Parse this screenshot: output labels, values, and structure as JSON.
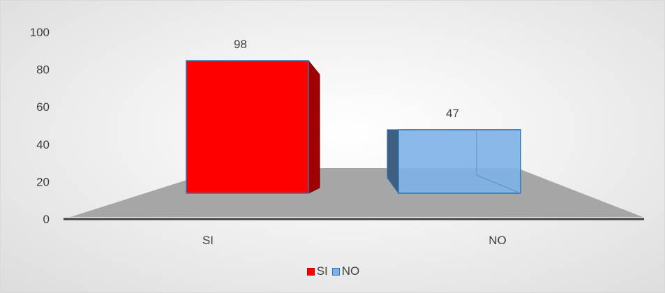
{
  "chart_data": {
    "type": "bar",
    "style": "3d-clustered-column",
    "categories": [
      "SI",
      "NO"
    ],
    "values": [
      98,
      47
    ],
    "series": [
      {
        "name": "SI",
        "values": [
          98,
          null
        ],
        "color": "#ff0000"
      },
      {
        "name": "NO",
        "values": [
          null,
          47
        ],
        "color": "#7db2e6"
      }
    ],
    "data_labels": [
      "98",
      "47"
    ],
    "ylim": [
      0,
      100
    ],
    "yticks": [
      0,
      20,
      40,
      60,
      80,
      100
    ],
    "ytick_labels": [
      "0",
      "20",
      "40",
      "60",
      "80",
      "100"
    ],
    "grid": false,
    "legend": "bottom",
    "colors": {
      "floor": "#a6a6a6",
      "axis": "#404040",
      "text": "#404040"
    }
  },
  "legend": {
    "items": [
      {
        "label": "SI",
        "color": "#ff0000"
      },
      {
        "label": "NO",
        "color": "#7db2e6"
      }
    ]
  }
}
